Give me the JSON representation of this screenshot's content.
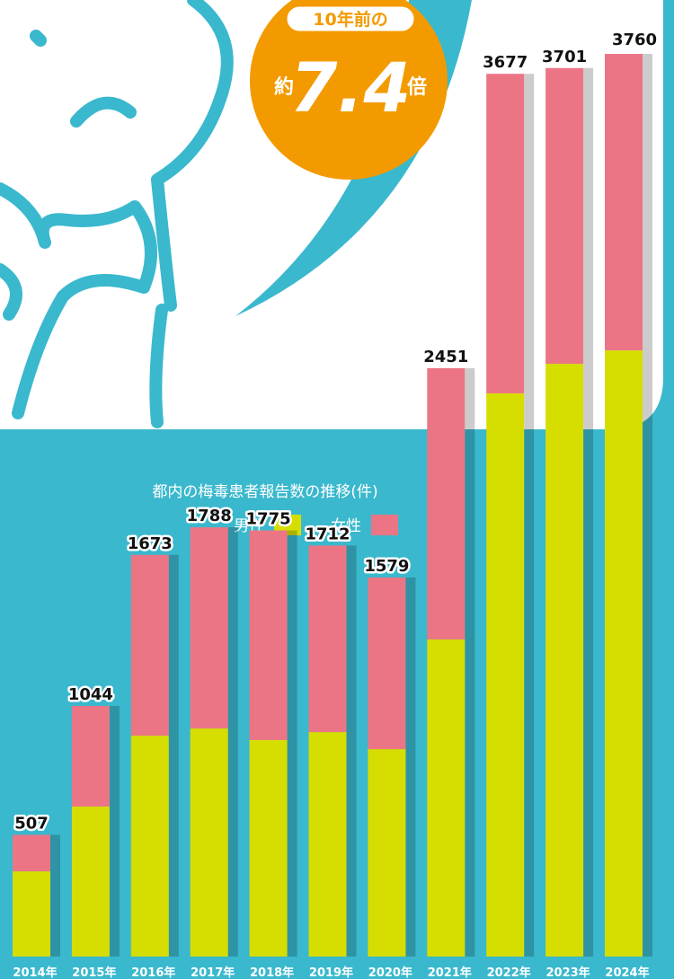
{
  "header": {
    "badge": "10年前の",
    "prefix": "約",
    "ratio": "7.4",
    "suffix": "倍"
  },
  "chart_data": {
    "type": "stacked-bar",
    "title": "都内の梅毒患者報告数の推移(件)",
    "categories": [
      "2014年",
      "2015年",
      "2016年",
      "2017年",
      "2018年",
      "2019年",
      "2020年",
      "2021年",
      "2022年",
      "2023年",
      "2024年"
    ],
    "series": [
      {
        "name": "男性",
        "color": "#d6dd00",
        "values": [
          355,
          625,
          920,
          950,
          902,
          935,
          864,
          1321,
          2346,
          2469,
          2525
        ]
      },
      {
        "name": "女性",
        "color": "#ec7585",
        "values": [
          152,
          419,
          753,
          838,
          873,
          777,
          715,
          1130,
          1331,
          1232,
          1235
        ]
      }
    ],
    "totals": [
      507,
      1044,
      1673,
      1788,
      1775,
      1712,
      1579,
      2451,
      3677,
      3701,
      3760
    ]
  }
}
